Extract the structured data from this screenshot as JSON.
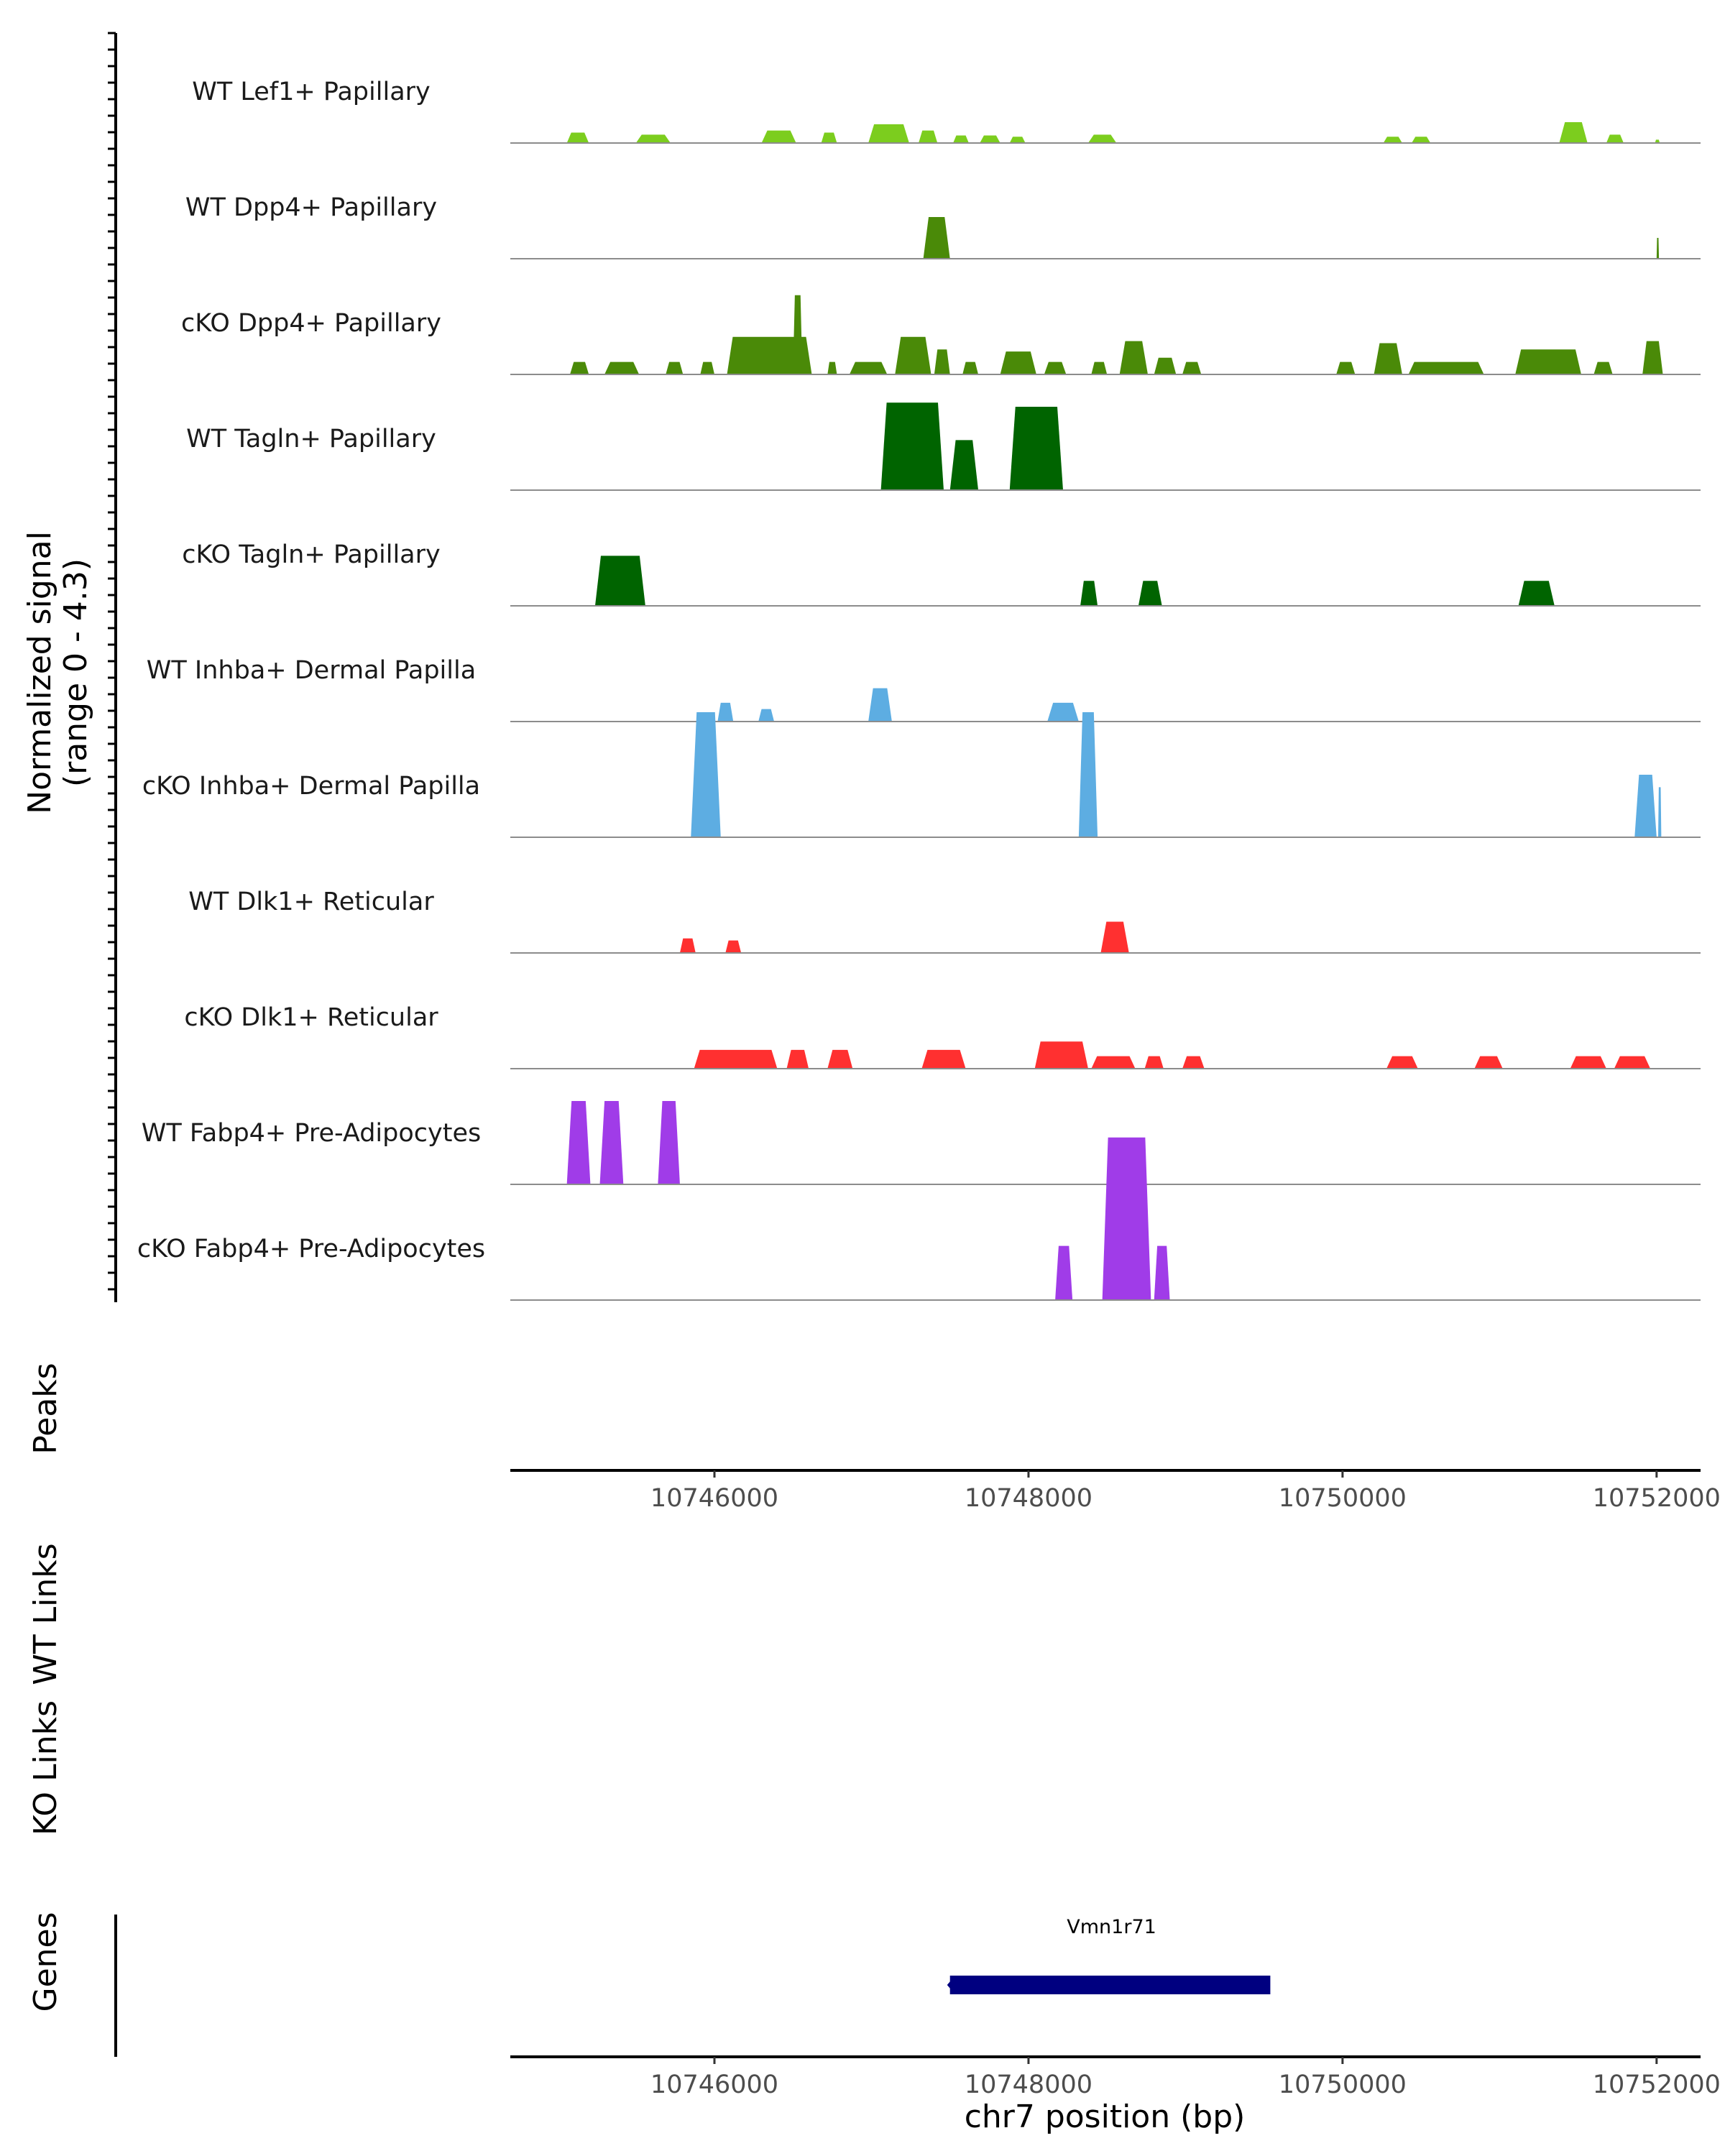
{
  "chart_data": {
    "type": "area",
    "title": "",
    "ylabel_line1": "Normalized signal",
    "ylabel_line2": "(range 0 - 4.3)",
    "xlabel": "chr7 position (bp)",
    "xlim": [
      10744700,
      10752280
    ],
    "ylim": [
      0,
      4.3
    ],
    "x_ticks": [
      10746000,
      10748000,
      10750000,
      10752000
    ],
    "x_tick_labels": [
      "10746000",
      "10748000",
      "10750000",
      "10752000"
    ],
    "tracks": [
      {
        "name": "WT Lef1+ Papillary",
        "color": "#7ccd1e",
        "peaks": [
          [
            10745060,
            10745200,
            0.25
          ],
          [
            10745500,
            10745720,
            0.2
          ],
          [
            10746300,
            10746520,
            0.3
          ],
          [
            10746680,
            10746780,
            0.25
          ],
          [
            10746980,
            10747240,
            0.45
          ],
          [
            10747300,
            10747420,
            0.3
          ],
          [
            10747520,
            10747620,
            0.18
          ],
          [
            10747690,
            10747820,
            0.18
          ],
          [
            10747880,
            10747980,
            0.15
          ],
          [
            10748380,
            10748560,
            0.2
          ],
          [
            10750260,
            10750380,
            0.15
          ],
          [
            10750440,
            10750560,
            0.15
          ],
          [
            10751380,
            10751560,
            0.5
          ],
          [
            10751680,
            10751790,
            0.2
          ],
          [
            10751990,
            10752020,
            0.08
          ]
        ]
      },
      {
        "name": "WT Dpp4+ Papillary",
        "color": "#4a8a08",
        "peaks": [
          [
            10747330,
            10747500,
            1.0
          ],
          [
            10752000,
            10752015,
            0.5
          ]
        ]
      },
      {
        "name": "cKO Dpp4+ Papillary",
        "color": "#4a8a08",
        "peaks": [
          [
            10745080,
            10745200,
            0.3
          ],
          [
            10745300,
            10745520,
            0.3
          ],
          [
            10745690,
            10745800,
            0.3
          ],
          [
            10745910,
            10746000,
            0.3
          ],
          [
            10746080,
            10746620,
            0.9
          ],
          [
            10746500,
            10746560,
            1.9
          ],
          [
            10746720,
            10746780,
            0.3
          ],
          [
            10746860,
            10747100,
            0.3
          ],
          [
            10747150,
            10747380,
            0.9
          ],
          [
            10747400,
            10747500,
            0.6
          ],
          [
            10747580,
            10747680,
            0.3
          ],
          [
            10747820,
            10748050,
            0.55
          ],
          [
            10748100,
            10748240,
            0.3
          ],
          [
            10748400,
            10748500,
            0.3
          ],
          [
            10748580,
            10748760,
            0.8
          ],
          [
            10748800,
            10748940,
            0.4
          ],
          [
            10748980,
            10749100,
            0.3
          ],
          [
            10749960,
            10750080,
            0.3
          ],
          [
            10750200,
            10750380,
            0.75
          ],
          [
            10750420,
            10750900,
            0.3
          ],
          [
            10751100,
            10751520,
            0.6
          ],
          [
            10751600,
            10751720,
            0.3
          ],
          [
            10751910,
            10752040,
            0.8
          ]
        ]
      },
      {
        "name": "WT Tagln+ Papillary",
        "color": "#006400",
        "peaks": [
          [
            10747060,
            10747460,
            2.1
          ],
          [
            10747500,
            10747680,
            1.2
          ],
          [
            10747880,
            10748220,
            2.0
          ]
        ]
      },
      {
        "name": "cKO Tagln+ Papillary",
        "color": "#006400",
        "peaks": [
          [
            10745240,
            10745560,
            1.2
          ],
          [
            10748330,
            10748440,
            0.6
          ],
          [
            10748700,
            10748850,
            0.6
          ],
          [
            10751120,
            10751350,
            0.6
          ]
        ]
      },
      {
        "name": "WT Inhba+ Dermal Papilla",
        "color": "#5dade2",
        "peaks": [
          [
            10746020,
            10746120,
            0.45
          ],
          [
            10746280,
            10746380,
            0.3
          ],
          [
            10746980,
            10747130,
            0.8
          ],
          [
            10748120,
            10748320,
            0.45
          ]
        ]
      },
      {
        "name": "cKO Inhba+ Dermal Papilla",
        "color": "#5dade2",
        "peaks": [
          [
            10745850,
            10746040,
            3.0
          ],
          [
            10748320,
            10748440,
            3.0
          ],
          [
            10751860,
            10752000,
            1.5
          ],
          [
            10752010,
            10752030,
            1.2
          ]
        ]
      },
      {
        "name": "WT Dlk1+ Reticular",
        "color": "#ff3030",
        "peaks": [
          [
            10745780,
            10745880,
            0.35
          ],
          [
            10746070,
            10746170,
            0.3
          ],
          [
            10748460,
            10748640,
            0.75
          ]
        ]
      },
      {
        "name": "cKO Dlk1+ Reticular",
        "color": "#ff3030",
        "peaks": [
          [
            10745870,
            10746400,
            0.45
          ],
          [
            10746460,
            10746600,
            0.45
          ],
          [
            10746720,
            10746880,
            0.45
          ],
          [
            10747320,
            10747600,
            0.45
          ],
          [
            10748040,
            10748380,
            0.65
          ],
          [
            10748400,
            10748680,
            0.3
          ],
          [
            10748740,
            10748860,
            0.3
          ],
          [
            10748980,
            10749120,
            0.3
          ],
          [
            10750280,
            10750480,
            0.3
          ],
          [
            10750840,
            10751020,
            0.3
          ],
          [
            10751450,
            10751680,
            0.3
          ],
          [
            10751730,
            10751960,
            0.3
          ]
        ]
      },
      {
        "name": "WT Fabp4+ Pre-Adipocytes",
        "color": "#a03ce8",
        "peaks": [
          [
            10745060,
            10745210,
            2.0
          ],
          [
            10745270,
            10745420,
            2.0
          ],
          [
            10745640,
            10745780,
            2.0
          ]
        ]
      },
      {
        "name": "cKO Fabp4+ Pre-Adipocytes",
        "color": "#a03ce8",
        "peaks": [
          [
            10748170,
            10748280,
            1.3
          ],
          [
            10748470,
            10748780,
            3.9
          ],
          [
            10748800,
            10748900,
            1.3
          ]
        ]
      }
    ],
    "peaks_track_label": "Peaks",
    "wt_links_label": "WT Links",
    "ko_links_label": "KO Links",
    "genes_label": "Genes",
    "genes": [
      {
        "name": "Vmn1r71",
        "start": 10747500,
        "end": 10749540,
        "color": "#000080"
      }
    ]
  }
}
